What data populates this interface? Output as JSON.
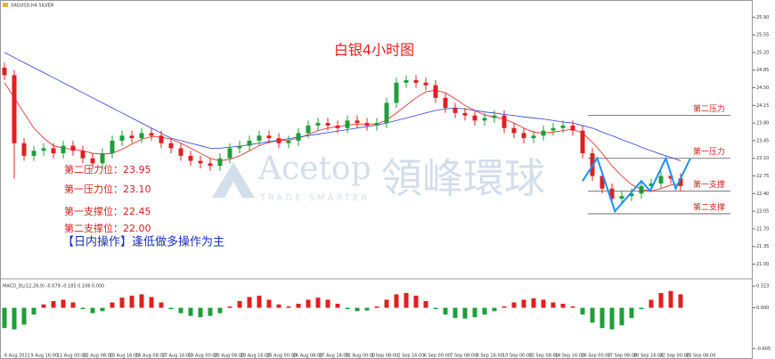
{
  "header": "XAGUSD,H4  SILVER",
  "watermark": {
    "brand": "Acetop",
    "brand_cn": "領峰環球",
    "slogan": "TRADE SMARTER"
  },
  "chart_data": [
    {
      "type": "candlestick",
      "title": "白银4小时图",
      "x_labels": [
        "6 Aug 2021",
        "9 Aug 16:00",
        "11 Aug 00:00",
        "12 Aug 08:00",
        "13 Aug 16:00",
        "16 Aug 08:00",
        "17 Aug 16:00",
        "19 Aug 00:00",
        "20 Aug 08:00",
        "23 Aug 16:00",
        "25 Aug 00:00",
        "26 Aug 08:00",
        "27 Aug 16:00",
        "31 Aug 00:00",
        "1 Sep 08:00",
        "2 Sep 16:00",
        "6 Sep 00:00",
        "7 Sep 08:00",
        "8 Sep 16:00",
        "10 Sep 00:00",
        "13 Sep 08:00",
        "14 Sep 16:00",
        "16 Sep 00:00",
        "17 Sep 08:00",
        "20 Sep 16:00",
        "22 Sep 00:00",
        "23 Sep 08:00"
      ],
      "open": [
        24.9,
        24.75,
        23.4,
        23.15,
        23.25,
        23.3,
        23.2,
        23.35,
        23.25,
        23.1,
        23.0,
        23.2,
        23.45,
        23.55,
        23.5,
        23.6,
        23.55,
        23.4,
        23.3,
        23.15,
        23.05,
        23.0,
        22.95,
        23.1,
        23.3,
        23.35,
        23.45,
        23.55,
        23.5,
        23.4,
        23.45,
        23.6,
        23.75,
        23.8,
        23.75,
        23.7,
        23.85,
        23.8,
        23.75,
        23.8,
        24.2,
        24.6,
        24.65,
        24.6,
        24.55,
        24.3,
        24.1,
        24.0,
        23.95,
        23.85,
        23.9,
        23.95,
        23.7,
        23.6,
        23.5,
        23.55,
        23.65,
        23.7,
        23.75,
        23.65,
        23.2,
        22.75,
        22.5,
        22.3,
        22.35,
        22.4,
        22.55,
        22.6,
        22.75,
        22.7
      ],
      "high": [
        25.0,
        24.85,
        23.5,
        23.35,
        23.4,
        23.4,
        23.45,
        23.45,
        23.35,
        23.2,
        23.3,
        23.55,
        23.65,
        23.65,
        23.7,
        23.7,
        23.65,
        23.5,
        23.4,
        23.25,
        23.15,
        23.1,
        23.2,
        23.4,
        23.45,
        23.55,
        23.65,
        23.65,
        23.6,
        23.55,
        23.7,
        23.85,
        23.9,
        23.9,
        23.85,
        23.95,
        23.95,
        23.9,
        23.9,
        24.3,
        24.7,
        24.75,
        24.75,
        24.7,
        24.65,
        24.4,
        24.2,
        24.1,
        24.05,
        24.0,
        24.05,
        24.05,
        23.8,
        23.7,
        23.65,
        23.75,
        23.8,
        23.85,
        23.85,
        23.75,
        23.3,
        22.85,
        22.6,
        22.45,
        22.5,
        22.65,
        22.7,
        22.85,
        22.85,
        22.8
      ],
      "low": [
        24.65,
        22.7,
        23.05,
        23.05,
        23.15,
        23.1,
        23.1,
        23.15,
        23.0,
        22.9,
        22.9,
        23.1,
        23.35,
        23.4,
        23.4,
        23.45,
        23.3,
        23.2,
        23.05,
        22.95,
        22.9,
        22.85,
        22.85,
        23.0,
        23.2,
        23.25,
        23.35,
        23.4,
        23.3,
        23.3,
        23.35,
        23.5,
        23.65,
        23.65,
        23.6,
        23.6,
        23.7,
        23.65,
        23.65,
        23.7,
        24.1,
        24.5,
        24.5,
        24.45,
        24.2,
        24.0,
        23.9,
        23.85,
        23.75,
        23.75,
        23.8,
        23.6,
        23.5,
        23.4,
        23.4,
        23.45,
        23.55,
        23.6,
        23.55,
        23.1,
        22.65,
        22.4,
        22.2,
        22.2,
        22.25,
        22.3,
        22.45,
        22.5,
        22.6,
        22.45
      ],
      "close": [
        24.75,
        23.4,
        23.15,
        23.25,
        23.3,
        23.2,
        23.35,
        23.25,
        23.1,
        23.0,
        23.2,
        23.45,
        23.55,
        23.5,
        23.6,
        23.55,
        23.4,
        23.3,
        23.15,
        23.05,
        23.0,
        22.95,
        23.1,
        23.3,
        23.35,
        23.45,
        23.55,
        23.5,
        23.4,
        23.45,
        23.6,
        23.75,
        23.8,
        23.75,
        23.7,
        23.85,
        23.8,
        23.75,
        23.8,
        24.2,
        24.6,
        24.65,
        24.6,
        24.55,
        24.3,
        24.1,
        24.0,
        23.95,
        23.85,
        23.9,
        23.95,
        23.7,
        23.6,
        23.5,
        23.55,
        23.65,
        23.7,
        23.75,
        23.65,
        23.2,
        22.75,
        22.5,
        22.3,
        22.35,
        22.4,
        22.55,
        22.6,
        22.75,
        22.7,
        22.55
      ],
      "up_color": "#1f9e3a",
      "down_color": "#e02020",
      "moving_averages": [
        {
          "color": "#e02020",
          "values": [
            24.6,
            24.3,
            24.0,
            23.7,
            23.5,
            23.35,
            23.3,
            23.28,
            23.25,
            23.2,
            23.18,
            23.2,
            23.28,
            23.38,
            23.48,
            23.53,
            23.52,
            23.48,
            23.4,
            23.3,
            23.2,
            23.1,
            23.05,
            23.08,
            23.15,
            23.25,
            23.35,
            23.42,
            23.45,
            23.46,
            23.5,
            23.57,
            23.65,
            23.7,
            23.73,
            23.76,
            23.78,
            23.78,
            23.78,
            23.86,
            24.0,
            24.15,
            24.3,
            24.42,
            24.45,
            24.4,
            24.28,
            24.15,
            24.05,
            23.96,
            23.92,
            23.88,
            23.8,
            23.7,
            23.62,
            23.6,
            23.62,
            23.65,
            23.68,
            23.6,
            23.42,
            23.2,
            22.95,
            22.75,
            22.58,
            22.48,
            22.45,
            22.5,
            22.57,
            22.6
          ]
        },
        {
          "color": "#2b3fd6",
          "values": [
            25.2,
            25.1,
            25.0,
            24.9,
            24.8,
            24.7,
            24.6,
            24.5,
            24.4,
            24.3,
            24.2,
            24.1,
            24.0,
            23.9,
            23.8,
            23.7,
            23.6,
            23.5,
            23.45,
            23.4,
            23.35,
            23.3,
            23.3,
            23.32,
            23.34,
            23.37,
            23.4,
            23.43,
            23.46,
            23.49,
            23.52,
            23.55,
            23.58,
            23.61,
            23.64,
            23.67,
            23.7,
            23.73,
            23.76,
            23.8,
            23.85,
            23.9,
            23.95,
            24.0,
            24.05,
            24.08,
            24.1,
            24.08,
            24.05,
            24.02,
            24.0,
            23.97,
            23.95,
            23.92,
            23.9,
            23.88,
            23.85,
            23.82,
            23.8,
            23.75,
            23.7,
            23.62,
            23.55,
            23.47,
            23.4,
            23.32,
            23.25,
            23.18,
            23.12,
            23.05
          ]
        }
      ],
      "levels": [
        {
          "value": 23.95,
          "label": "第二压力"
        },
        {
          "value": 23.1,
          "label": "第一压力"
        },
        {
          "value": 22.45,
          "label": "第一支撑"
        },
        {
          "value": 22.0,
          "label": "第二支撑"
        }
      ],
      "zigzag": {
        "color": "#1e90ff",
        "x": [
          59,
          60.5,
          62.3,
          65,
          65.9,
          67.5,
          68.5,
          70
        ],
        "y": [
          22.65,
          23.1,
          22.05,
          22.65,
          22.45,
          23.1,
          22.5,
          23.1
        ]
      },
      "annotations": [
        "第二压力位：23.95",
        "第一压力位：23.10",
        "第一支撑位：22.45",
        "第二支撑位：22.00"
      ],
      "strategy": "【日内操作】逢低做多操作为主",
      "ylim": [
        20.85,
        26.1
      ],
      "yticks": [
        {
          "value": 21.0,
          "label": "21.00"
        },
        21.35,
        {
          "value": 21.7,
          "label": "21.70"
        },
        22.05,
        {
          "value": 22.4,
          "label": "22.40"
        },
        22.75,
        {
          "value": 23.1,
          "label": "23.10"
        },
        23.45,
        {
          "value": 23.8,
          "label": "23.80"
        },
        24.15,
        {
          "value": 24.5,
          "label": "24.50"
        },
        24.85,
        {
          "value": 25.2,
          "label": "25.20"
        },
        25.55,
        {
          "value": 25.9,
          "label": "25.90"
        }
      ]
    },
    {
      "type": "macd",
      "title": "MACD_DL(12,26,9) -0.079 -0.185 0.106 0.000",
      "values": [
        -0.3,
        -0.32,
        -0.25,
        -0.1,
        0.05,
        0.1,
        0.12,
        0.08,
        -0.02,
        -0.08,
        -0.05,
        0.08,
        0.15,
        0.18,
        0.2,
        0.16,
        0.08,
        -0.02,
        -0.08,
        -0.12,
        -0.14,
        -0.12,
        -0.08,
        0.02,
        0.1,
        0.16,
        0.18,
        0.12,
        0.05,
        0.02,
        0.06,
        0.12,
        0.15,
        0.12,
        0.06,
        -0.02,
        -0.05,
        -0.04,
        0.02,
        0.12,
        0.2,
        0.22,
        0.18,
        0.1,
        -0.02,
        -0.1,
        -0.15,
        -0.16,
        -0.14,
        -0.1,
        -0.05,
        0.02,
        0.08,
        0.12,
        0.14,
        0.12,
        0.08,
        0.06,
        0.02,
        -0.1,
        -0.22,
        -0.3,
        -0.32,
        -0.26,
        -0.15,
        -0.02,
        0.12,
        0.22,
        0.25,
        0.2
      ],
      "up_color": "#e02020",
      "down_color": "#1f9e3a",
      "ylim": [
        -0.68,
        0.39
      ],
      "yticks": [
        0.323,
        {
          "value": 0,
          "label": "0.000"
        },
        -0.605
      ]
    }
  ]
}
